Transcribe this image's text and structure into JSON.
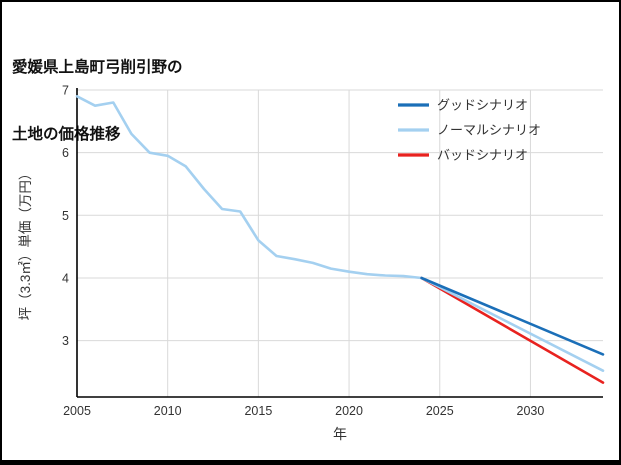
{
  "title": {
    "line1": "愛媛県上島町弓削引野の",
    "line2": "土地の価格推移"
  },
  "chart_data": {
    "type": "line",
    "title": "愛媛県上島町弓削引野の土地の価格推移",
    "xlabel": "年",
    "ylabel": "坪（3.3㎡）単価（万円）",
    "xlim": [
      2005,
      2034
    ],
    "ylim": [
      2.1,
      7.0
    ],
    "xticks": [
      2005,
      2010,
      2015,
      2020,
      2025,
      2030
    ],
    "yticks": [
      3,
      4,
      5,
      6,
      7
    ],
    "grid": true,
    "legend_position": "top-right",
    "colors": {
      "grid": "#d9d9d9",
      "axis": "#000000",
      "tick_text": "#333333",
      "good": "#1b6fb8",
      "normal": "#a4d0f0",
      "bad": "#e8221f",
      "history": "#a4d0f0"
    },
    "series": [
      {
        "id": "good",
        "name": "グッドシナリオ",
        "color": "#1b6fb8",
        "in_legend": true,
        "x": [
          2024,
          2034
        ],
        "values": [
          4.0,
          2.78
        ]
      },
      {
        "id": "normal",
        "name": "ノーマルシナリオ",
        "color": "#a4d0f0",
        "in_legend": true,
        "x": [
          2024,
          2034
        ],
        "values": [
          4.0,
          2.52
        ]
      },
      {
        "id": "bad",
        "name": "バッドシナリオ",
        "color": "#e8221f",
        "in_legend": true,
        "x": [
          2024,
          2034
        ],
        "values": [
          4.0,
          2.33
        ]
      },
      {
        "id": "historical",
        "name": "historical",
        "color": "#a4d0f0",
        "in_legend": false,
        "x": [
          2005,
          2006,
          2007,
          2008,
          2009,
          2010,
          2011,
          2012,
          2013,
          2014,
          2015,
          2016,
          2017,
          2018,
          2019,
          2020,
          2021,
          2022,
          2023,
          2024
        ],
        "values": [
          6.9,
          6.75,
          6.8,
          6.3,
          6.0,
          5.95,
          5.78,
          5.42,
          5.1,
          5.06,
          4.6,
          4.35,
          4.3,
          4.24,
          4.15,
          4.1,
          4.06,
          4.04,
          4.03,
          4.0
        ]
      }
    ]
  }
}
